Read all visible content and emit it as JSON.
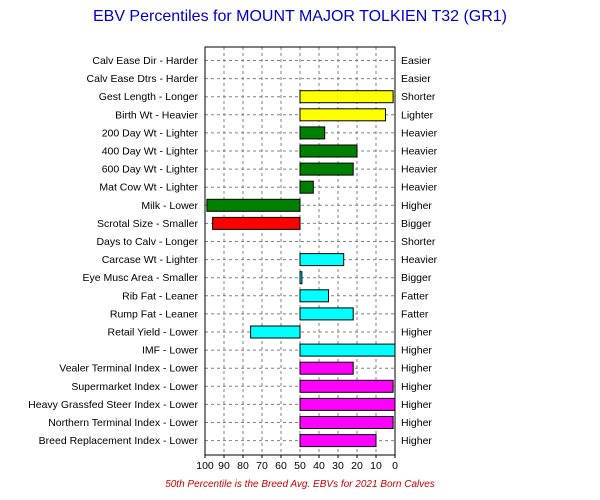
{
  "chart_data": {
    "type": "bar",
    "orientation": "horizontal",
    "title": "EBV Percentiles for MOUNT MAJOR TOLKIEN T32 (GR1)",
    "footnote": "50th Percentile is the Breed Avg. EBVs for 2021 Born Calves",
    "xlim": [
      100,
      0
    ],
    "x_ticks": [
      "100",
      "90",
      "80",
      "70",
      "60",
      "50",
      "40",
      "30",
      "20",
      "10",
      "0"
    ],
    "baseline": 50,
    "grid": true,
    "colors": {
      "title": "#0000cc",
      "footnote": "#cc0000",
      "yellow": "#ffff00",
      "green": "#008000",
      "red": "#ff0000",
      "cyan": "#00ffff",
      "magenta": "#ff00ff"
    },
    "traits": [
      {
        "label": "Calv Ease Dir - Harder",
        "right_label": "Easier",
        "value": null,
        "color": null
      },
      {
        "label": "Calv Ease Dtrs - Harder",
        "right_label": "Easier",
        "value": null,
        "color": null
      },
      {
        "label": "Gest Length - Longer",
        "right_label": "Shorter",
        "value": 1,
        "color": "yellow"
      },
      {
        "label": "Birth Wt - Heavier",
        "right_label": "Lighter",
        "value": 5,
        "color": "yellow"
      },
      {
        "label": "200 Day Wt - Lighter",
        "right_label": "Heavier",
        "value": 37,
        "color": "green"
      },
      {
        "label": "400 Day Wt - Lighter",
        "right_label": "Heavier",
        "value": 20,
        "color": "green"
      },
      {
        "label": "600 Day Wt - Lighter",
        "right_label": "Heavier",
        "value": 22,
        "color": "green"
      },
      {
        "label": "Mat Cow Wt - Lighter",
        "right_label": "Heavier",
        "value": 43,
        "color": "green"
      },
      {
        "label": "Milk - Lower",
        "right_label": "Higher",
        "value": 99,
        "color": "green"
      },
      {
        "label": "Scrotal Size - Smaller",
        "right_label": "Bigger",
        "value": 96,
        "color": "red"
      },
      {
        "label": "Days to Calv - Longer",
        "right_label": "Shorter",
        "value": null,
        "color": null
      },
      {
        "label": "Carcase Wt - Lighter",
        "right_label": "Heavier",
        "value": 27,
        "color": "cyan"
      },
      {
        "label": "Eye Musc Area - Smaller",
        "right_label": "Bigger",
        "value": 49,
        "color": "cyan"
      },
      {
        "label": "Rib Fat - Leaner",
        "right_label": "Fatter",
        "value": 35,
        "color": "cyan"
      },
      {
        "label": "Rump Fat - Leaner",
        "right_label": "Fatter",
        "value": 22,
        "color": "cyan"
      },
      {
        "label": "Retail Yield - Lower",
        "right_label": "Higher",
        "value": 76,
        "color": "cyan"
      },
      {
        "label": "IMF - Lower",
        "right_label": "Higher",
        "value": 0,
        "color": "cyan"
      },
      {
        "label": "Vealer Terminal Index - Lower",
        "right_label": "Higher",
        "value": 22,
        "color": "magenta"
      },
      {
        "label": "Supermarket Index - Lower",
        "right_label": "Higher",
        "value": 1,
        "color": "magenta"
      },
      {
        "label": "Heavy Grassfed Steer Index - Lower",
        "right_label": "Higher",
        "value": 0,
        "color": "magenta"
      },
      {
        "label": "Northern Terminal Index - Lower",
        "right_label": "Higher",
        "value": 1,
        "color": "magenta"
      },
      {
        "label": "Breed Replacement Index - Lower",
        "right_label": "Higher",
        "value": 10,
        "color": "magenta"
      }
    ]
  }
}
